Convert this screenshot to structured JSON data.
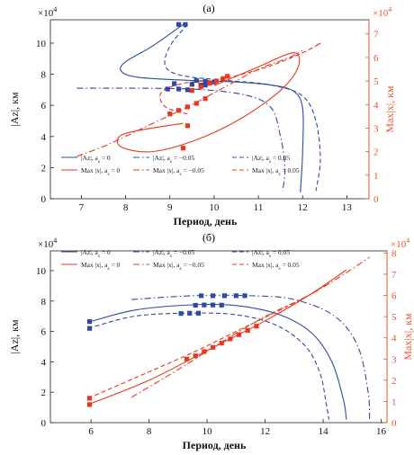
{
  "colors": {
    "blue": "#2e4aa3",
    "red": "#e8381e",
    "axis_right": "#e8542f"
  },
  "chart_data": [
    {
      "type": "line",
      "panel_label": "(а)",
      "xlabel": "Период, день",
      "ylabel_left": "|Az|, км",
      "ylabel_right": "Max|x|, км",
      "left_scale_label": "×10^4",
      "right_scale_label": "×10^4",
      "xlim": [
        6.3,
        13.5
      ],
      "ylim_left": [
        0,
        11.5
      ],
      "ylim_right": [
        0,
        7.6
      ],
      "xticks": [
        "7",
        "8",
        "9",
        "10",
        "11",
        "12",
        "13"
      ],
      "yticks_left": [
        "0",
        "2",
        "4",
        "6",
        "8",
        "10"
      ],
      "yticks_right": [
        "0",
        "1",
        "2",
        "3",
        "4",
        "5",
        "6",
        "7"
      ],
      "grid": false,
      "legend_position": "bottom",
      "series": [
        {
          "name": "|Az|, a_s = 0",
          "axis": "left",
          "color": "blue",
          "dash": "solid",
          "x": [
            9.3,
            8.6,
            8.0,
            7.9,
            8.3,
            9.5,
            10.5,
            11.3,
            11.8,
            12.0,
            12.0,
            11.95
          ],
          "y": [
            11.2,
            9.8,
            8.8,
            8.2,
            7.8,
            7.6,
            7.5,
            7.3,
            6.9,
            5.8,
            3.0,
            0.4
          ]
        },
        {
          "name": "|Az|, a_s = −0.05",
          "axis": "left",
          "color": "blue",
          "dash": "dashdot",
          "x": [
            6.9,
            8.5,
            9.8,
            10.8,
            11.3,
            11.5,
            11.6,
            11.55
          ],
          "y": [
            7.1,
            7.1,
            7.0,
            6.6,
            5.8,
            4.0,
            2.0,
            0.5
          ]
        },
        {
          "name": "|Az|, a_s = 0.05",
          "axis": "left",
          "color": "blue",
          "dash": "dashed",
          "x": [
            9.4,
            9.0,
            8.9,
            9.3,
            10.3,
            11.3,
            12.0,
            12.3,
            12.4,
            12.3
          ],
          "y": [
            11.2,
            9.8,
            8.5,
            7.9,
            7.6,
            7.3,
            6.6,
            5.0,
            2.5,
            0.5
          ]
        },
        {
          "name": "Max |x|, a_s = 0",
          "axis": "right",
          "color": "red",
          "dash": "solid",
          "x": [
            9.3,
            8.6,
            7.9,
            7.9,
            8.6,
            9.6,
            10.6,
            11.5,
            11.9,
            11.8,
            11.0,
            10.0
          ],
          "y": [
            3.2,
            3.0,
            2.7,
            2.2,
            2.0,
            2.5,
            3.4,
            4.6,
            5.6,
            6.2,
            5.6,
            4.8
          ]
        },
        {
          "name": "Max |x|, a_s = −0.05",
          "axis": "right",
          "color": "red",
          "dash": "dashdot",
          "x": [
            6.9,
            7.6,
            8.5,
            9.4,
            10.2,
            11.0,
            11.7,
            12.0
          ],
          "y": [
            1.8,
            2.3,
            3.1,
            3.9,
            4.7,
            5.5,
            6.0,
            6.3
          ]
        },
        {
          "name": "Max |x|, a_s = 0.05",
          "axis": "right",
          "color": "red",
          "dash": "dashed",
          "x": [
            9.4,
            8.9,
            8.8,
            9.3,
            10.2,
            11.2,
            12.0,
            12.4,
            12.3
          ],
          "y": [
            3.6,
            3.9,
            4.5,
            4.9,
            5.1,
            5.6,
            6.2,
            6.6,
            6.5
          ]
        }
      ],
      "highlights": [
        {
          "color": "blue",
          "axis": "left",
          "x": [
            9.2,
            9.35
          ],
          "y": [
            11.2,
            11.2
          ]
        },
        {
          "color": "blue",
          "axis": "left",
          "x": [
            9.1,
            9.5,
            9.7,
            9.8
          ],
          "y": [
            7.4,
            7.35,
            7.3,
            7.3
          ]
        },
        {
          "color": "blue",
          "axis": "left",
          "x": [
            8.95,
            9.2,
            9.4
          ],
          "y": [
            7.05,
            7.05,
            7.0
          ]
        },
        {
          "color": "blue",
          "axis": "left",
          "x": [
            9.6,
            9.8,
            10.0
          ],
          "y": [
            7.6,
            7.55,
            7.5
          ]
        },
        {
          "color": "red",
          "axis": "right",
          "x": [
            9.5,
            9.7,
            9.9,
            10.05,
            10.2,
            10.3
          ],
          "y": [
            4.6,
            4.75,
            4.9,
            5.0,
            5.1,
            5.2
          ]
        },
        {
          "color": "red",
          "axis": "right",
          "x": [
            9.0,
            9.2,
            9.4,
            9.6,
            9.8
          ],
          "y": [
            3.6,
            3.75,
            3.9,
            4.05,
            4.25
          ]
        },
        {
          "color": "red",
          "axis": "right",
          "x": [
            9.4,
            9.3
          ],
          "y": [
            3.1,
            2.15
          ]
        }
      ],
      "legend": [
        {
          "label": "|Az|, a_s = 0",
          "color": "blue",
          "dash": "solid"
        },
        {
          "label": "|Az|, a_s = −0.05",
          "color": "blue",
          "dash": "dashdot"
        },
        {
          "label": "|Az|, a_s = 0.05",
          "color": "blue",
          "dash": "dashed"
        },
        {
          "label": "Max |x|, a_s = 0",
          "color": "red",
          "dash": "solid"
        },
        {
          "label": "Max |x|, a_s = −0.05",
          "color": "red",
          "dash": "dashdot"
        },
        {
          "label": "Max |x|, a_s = 0.05",
          "color": "red",
          "dash": "dashed"
        }
      ]
    },
    {
      "type": "line",
      "panel_label": "(б)",
      "xlabel": "Период, день",
      "ylabel_left": "|Az|, км",
      "ylabel_right": "Max|x|, км",
      "left_scale_label": "×10^4",
      "right_scale_label": "×10^4",
      "xlim": [
        4.6,
        16.2
      ],
      "ylim_left": [
        0,
        11.3
      ],
      "ylim_right": [
        0,
        8.1
      ],
      "xticks": [
        "6",
        "8",
        "10",
        "12",
        "14",
        "16"
      ],
      "yticks_left": [
        "0",
        "2",
        "4",
        "6",
        "8",
        "10"
      ],
      "yticks_right": [
        "0",
        "1",
        "2",
        "3",
        "4",
        "5",
        "6",
        "7",
        "8"
      ],
      "grid": false,
      "legend_position": "top",
      "series": [
        {
          "name": "|Az|, a_s = 0",
          "axis": "left",
          "color": "blue",
          "dash": "solid",
          "x": [
            5.9,
            7.5,
            9.5,
            11.0,
            12.5,
            13.6,
            14.3,
            14.7,
            14.8
          ],
          "y": [
            6.6,
            7.4,
            7.75,
            7.7,
            7.1,
            5.9,
            4.0,
            1.5,
            0.2
          ]
        },
        {
          "name": "|Az|, a_s = −0.05",
          "axis": "left",
          "color": "blue",
          "dash": "dashdot",
          "x": [
            7.4,
            9.5,
            11.5,
            13.0,
            14.4,
            15.2,
            15.55,
            15.6
          ],
          "y": [
            8.1,
            8.35,
            8.35,
            8.1,
            7.0,
            5.0,
            2.0,
            0.2
          ]
        },
        {
          "name": "|Az|, a_s = 0.05",
          "axis": "left",
          "color": "blue",
          "dash": "dashed",
          "x": [
            5.9,
            7.5,
            9.3,
            11.0,
            12.4,
            13.4,
            13.9,
            14.1,
            14.2
          ],
          "y": [
            6.2,
            7.0,
            7.2,
            7.1,
            6.4,
            5.0,
            3.2,
            1.3,
            0.2
          ]
        },
        {
          "name": "Max |x|, a_s = 0",
          "axis": "right",
          "color": "red",
          "dash": "solid",
          "x": [
            5.9,
            8.0,
            10.0,
            12.0,
            13.5,
            14.8
          ],
          "y": [
            0.85,
            2.0,
            3.4,
            4.8,
            6.0,
            7.2
          ]
        },
        {
          "name": "Max |x|, a_s = −0.05",
          "axis": "right",
          "color": "red",
          "dash": "dashdot",
          "x": [
            7.4,
            9.0,
            10.5,
            12.0,
            13.5,
            14.6,
            15.6
          ],
          "y": [
            1.2,
            2.5,
            3.8,
            5.0,
            6.0,
            6.9,
            7.8
          ]
        },
        {
          "name": "Max |x|, a_s = 0.05",
          "axis": "right",
          "color": "red",
          "dash": "dashed",
          "x": [
            5.9,
            7.5,
            9.5,
            11.0,
            12.5,
            13.5,
            14.2
          ],
          "y": [
            1.15,
            2.1,
            3.3,
            4.3,
            5.3,
            6.0,
            6.6
          ]
        }
      ],
      "highlights": [
        {
          "color": "blue",
          "axis": "left",
          "x": [
            5.95
          ],
          "y": [
            6.65
          ]
        },
        {
          "color": "blue",
          "axis": "left",
          "x": [
            5.95
          ],
          "y": [
            6.2
          ]
        },
        {
          "color": "blue",
          "axis": "left",
          "x": [
            9.8,
            10.2,
            10.6,
            11.0,
            11.3
          ],
          "y": [
            8.35,
            8.35,
            8.35,
            8.35,
            8.35
          ]
        },
        {
          "color": "blue",
          "axis": "left",
          "x": [
            9.6,
            9.9,
            10.2,
            10.5
          ],
          "y": [
            7.72,
            7.74,
            7.74,
            7.73
          ]
        },
        {
          "color": "blue",
          "axis": "left",
          "x": [
            9.1,
            9.4,
            9.7
          ],
          "y": [
            7.18,
            7.2,
            7.2
          ]
        },
        {
          "color": "red",
          "axis": "right",
          "x": [
            5.95
          ],
          "y": [
            1.15
          ]
        },
        {
          "color": "red",
          "axis": "right",
          "x": [
            5.95
          ],
          "y": [
            0.85
          ]
        },
        {
          "color": "red",
          "axis": "right",
          "x": [
            9.3,
            9.6,
            9.9,
            10.2,
            10.5,
            10.8,
            11.1,
            11.4,
            11.7
          ],
          "y": [
            3.0,
            3.15,
            3.35,
            3.55,
            3.75,
            3.95,
            4.15,
            4.35,
            4.55
          ]
        }
      ],
      "legend": [
        {
          "label": "|Az|, a_s = 0",
          "color": "blue",
          "dash": "solid"
        },
        {
          "label": "|Az|, a_s = −0.05",
          "color": "blue",
          "dash": "dashdot"
        },
        {
          "label": "|Az|, a_s = 0.05",
          "color": "blue",
          "dash": "dashed"
        },
        {
          "label": "Max |x|, a_s = 0",
          "color": "red",
          "dash": "solid"
        },
        {
          "label": "Max |x|, a_s = −0.05",
          "color": "red",
          "dash": "dashdot"
        },
        {
          "label": "Max |x|, a_s = 0.05",
          "color": "red",
          "dash": "dashed"
        }
      ]
    }
  ]
}
